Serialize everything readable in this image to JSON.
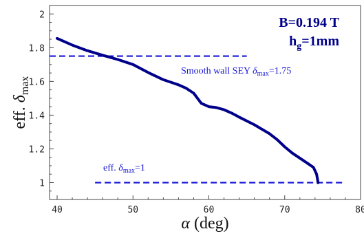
{
  "chart_data": {
    "type": "line",
    "title": "",
    "xlabel": "α (deg)",
    "ylabel": "eff. δmax",
    "xlim": [
      39,
      80
    ],
    "ylim": [
      0.9,
      2.05
    ],
    "x_ticks": [
      40,
      50,
      60,
      70,
      80
    ],
    "y_ticks": [
      1,
      1.2,
      1.4,
      1.6,
      1.8,
      2
    ],
    "grid": false,
    "colors": {
      "curve": "#00008b",
      "reference": "#1515d6"
    },
    "series": [
      {
        "x": [
          40,
          42,
          44,
          46,
          48,
          50,
          52,
          54,
          56,
          57,
          58,
          59,
          60,
          61,
          62,
          63,
          64,
          66,
          68,
          69,
          70,
          71,
          72,
          73,
          73.8,
          74.2,
          74.4
        ],
        "y": [
          1.855,
          1.815,
          1.782,
          1.755,
          1.73,
          1.7,
          1.653,
          1.61,
          1.58,
          1.56,
          1.53,
          1.47,
          1.45,
          1.445,
          1.432,
          1.412,
          1.388,
          1.343,
          1.29,
          1.255,
          1.212,
          1.175,
          1.145,
          1.115,
          1.09,
          1.05,
          1.0
        ]
      }
    ],
    "reference_lines": [
      {
        "label": "Smooth wall SEY δmax=1.75",
        "label_main": "Smooth wall SEY ",
        "label_var": "δ",
        "label_sub": "max",
        "label_end": "=1.75",
        "y": 1.75,
        "x_range": [
          39,
          65
        ]
      },
      {
        "label": "eff. δmax=1",
        "label_main": "eff. ",
        "label_var": "δ",
        "label_sub": "max",
        "label_end": "=1",
        "y": 1.0,
        "x_range": [
          45,
          78
        ]
      }
    ],
    "annotations": {
      "field": "B=0.194 T",
      "gap_main": "h",
      "gap_sub": "g",
      "gap_end": "=1mm"
    },
    "axis_text": {
      "x_var": "α",
      "x_unit": " (deg)",
      "y_main": "eff. ",
      "y_var": "δ",
      "y_sub": "max"
    }
  }
}
